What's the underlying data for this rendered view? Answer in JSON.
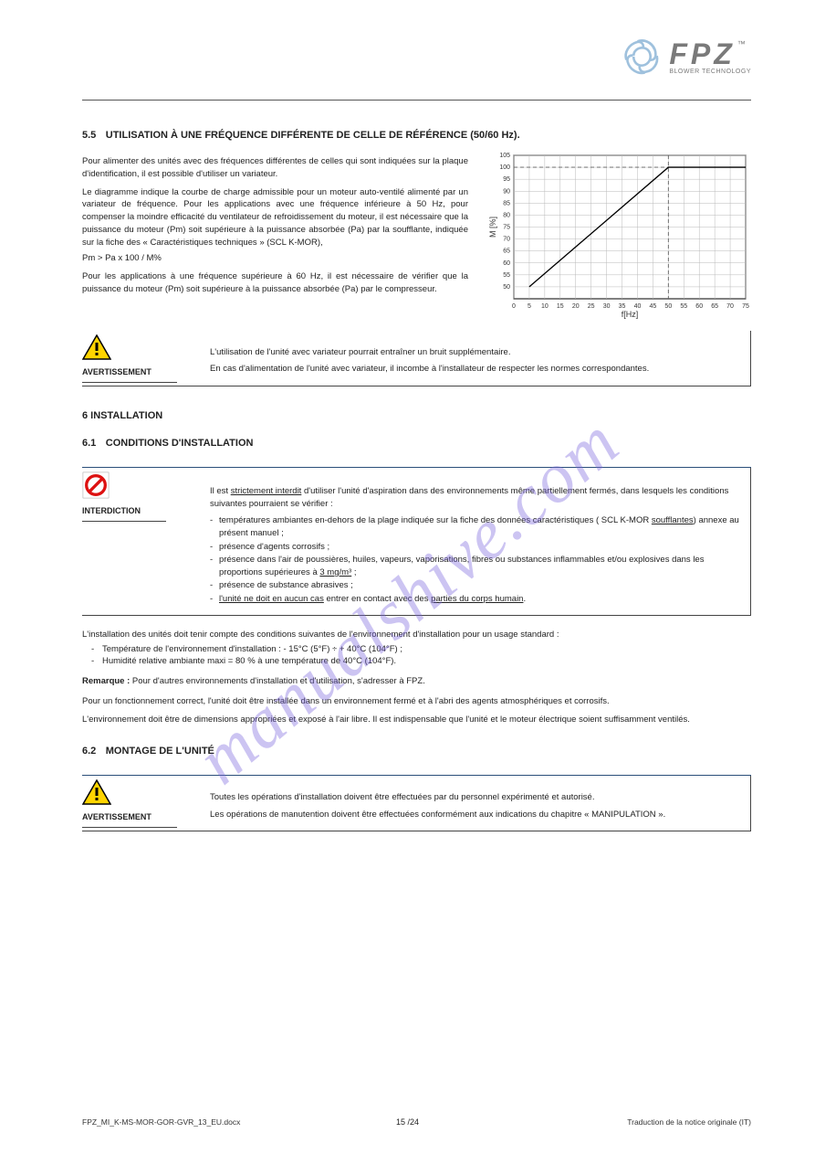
{
  "brand": {
    "name": "FPZ",
    "tagline": "BLOWER TECHNOLOGY",
    "tm": "™"
  },
  "watermark": "manualshive.com",
  "sec1": {
    "num": "5.5",
    "title": "UTILISATION À UNE FRÉQUENCE DIFFÉRENTE DE CELLE DE RÉFÉRENCE (50/60 Hz).",
    "p1": "Pour alimenter des unités avec des fréquences différentes de celles qui sont indiquées sur la plaque d'identification, il est possible d'utiliser un variateur.",
    "p2": "Le diagramme indique la courbe de charge admissible pour un moteur auto-ventilé alimenté par un variateur de fréquence. Pour les applications avec une fréquence inférieure à 50 Hz, pour compenser la moindre efficacité du ventilateur de refroidissement du moteur, il est nécessaire que la puissance du moteur (Pm) soit supérieure à la puissance absorbée (Pa) par la soufflante, indiquée sur la fiche des « Caractéristiques techniques » (SCL K-MOR),",
    "formula": "Pm > Pa x 100 / M%",
    "p3": "Pour les applications à une fréquence supérieure à 60 Hz, il est nécessaire de vérifier que la puissance du moteur (Pm) soit supérieure à la puissance absorbée (Pa) par le compresseur."
  },
  "chart": {
    "type": "line",
    "xlabel": "f[Hz]",
    "ylabel": "M [%]",
    "xlim": [
      0,
      75
    ],
    "ylim": [
      45,
      105
    ],
    "xticks": [
      0,
      5,
      10,
      15,
      20,
      25,
      30,
      35,
      40,
      45,
      50,
      55,
      60,
      65,
      70,
      75
    ],
    "yticks": [
      50,
      55,
      60,
      65,
      70,
      75,
      80,
      85,
      90,
      95,
      100,
      105
    ],
    "line_color": "#000000",
    "grid_color": "#b8b8b8",
    "ref_color": "#606060",
    "background_color": "#ffffff",
    "line_width": 1.3,
    "points": [
      [
        5,
        50
      ],
      [
        50,
        100
      ],
      [
        75,
        100
      ]
    ],
    "ref_x": 50,
    "ref_y": 100
  },
  "warn1": {
    "label": "AVERTISSEMENT",
    "line1": "L'utilisation de l'unité avec variateur pourrait entraîner un bruit supplémentaire.",
    "line2": "En cas d'alimentation de l'unité avec variateur, il incombe à l'installateur de respecter les normes correspondantes."
  },
  "sec2": {
    "num_full": "6 INSTALLATION",
    "sub_num": "6.1",
    "sub_title": "CONDITIONS D'INSTALLATION"
  },
  "prohib": {
    "label": "INTERDICTION",
    "p1a": "Il est ",
    "p1u": "strictement interdit",
    "p1b": " d'utiliser l'unité d'aspiration dans des environnements même partiellement fermés, dans lesquels les conditions suivantes pourraient se vérifier :",
    "li1a": "températures ambiantes en-dehors de la plage indiquée sur la fiche des données caractéristiques ( SCL K-MOR ",
    "li1u": "soufflantes",
    "li1b": ") annexe au présent manuel ;",
    "li2": "présence d'agents corrosifs ;",
    "li3a": "présence dans l'air de poussières, huiles, vapeurs, vaporisations, fibres ou substances inflammables et/ou explosives dans les proportions supérieures à ",
    "li3u": "3 mg/m³",
    "li3b": " ;",
    "li4": "présence de substance abrasives ;",
    "li5a": "",
    "li5u": "l'unité ne doit en aucun cas",
    "li5b": " entrer en contact avec des ",
    "li5u2": "parties du corps humain",
    "li5c": "."
  },
  "installp": "L'installation des unités doit tenir compte des conditions suivantes de l'environnement d'installation pour un usage standard :",
  "install_li1": "Température de l'environnement d'installation : - 15°C (5°F) ÷ + 40°C (104°F) ;",
  "install_li2": "Humidité relative ambiante maxi = 80 % à une température de 40°C (104°F).",
  "note": "Remarque :",
  "notebody": " Pour d'autres environnements d'installation et d'utilisation, s'adresser à FPZ.",
  "pos": {
    "p1": "Pour un fonctionnement correct, l'unité doit être installée dans un environnement fermé et à l'abri des agents atmosphériques et corrosifs.",
    "p2": "L'environnement doit être de dimensions appropriées et exposé à l'air libre. Il est indispensable que l'unité et le moteur électrique soient suffisamment ventilés."
  },
  "sec3": {
    "num": "6.2",
    "title": "MONTAGE DE L'UNITÉ"
  },
  "warn2": {
    "label": "AVERTISSEMENT",
    "p1": "Toutes les opérations d'installation doivent être effectuées par du personnel expérimenté et autorisé.",
    "p2": "Les opérations de manutention doivent être effectuées conformément aux indications du chapitre « MANIPULATION »."
  },
  "footer": {
    "left": "FPZ_MI_K-MS-MOR-GOR-GVR_13_EU.docx",
    "right": "Traduction de la notice originale (IT)"
  },
  "pagenum": "15 /24"
}
